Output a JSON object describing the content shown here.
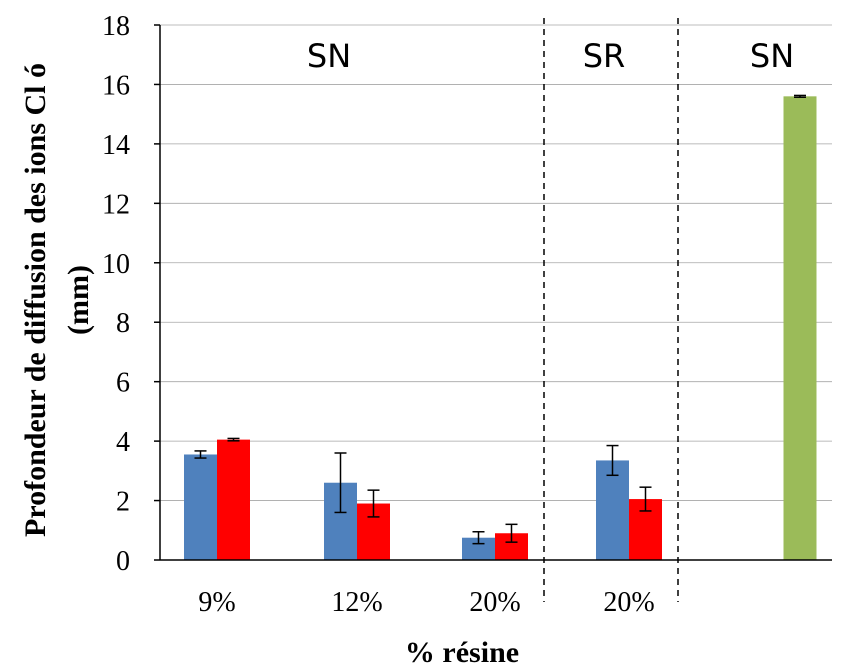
{
  "chart_data": {
    "type": "bar",
    "title": "",
    "xlabel": "% résine",
    "ylabel_line1": "Profondeur de diffusion des ions Cl ó",
    "ylabel_line2": "(mm)",
    "ylim": [
      0,
      18
    ],
    "yticks": [
      "0",
      "2",
      "4",
      "6",
      "8",
      "10",
      "12",
      "14",
      "16",
      "18"
    ],
    "grid": true,
    "legend": "none",
    "groups": [
      {
        "category": "9%",
        "region": "SN",
        "bars": [
          {
            "value": 3.55,
            "err": 0.12,
            "color": "#4f81bd"
          },
          {
            "value": 4.05,
            "err": 0.04,
            "color": "#ff0000"
          }
        ]
      },
      {
        "category": "12%",
        "region": "SN",
        "bars": [
          {
            "value": 2.6,
            "err": 1.0,
            "color": "#4f81bd"
          },
          {
            "value": 1.9,
            "err": 0.45,
            "color": "#ff0000"
          }
        ]
      },
      {
        "category": "20%",
        "region": "SN",
        "bars": [
          {
            "value": 0.75,
            "err": 0.2,
            "color": "#4f81bd"
          },
          {
            "value": 0.9,
            "err": 0.3,
            "color": "#ff0000"
          }
        ]
      },
      {
        "category": "20%",
        "region": "SR",
        "bars": [
          {
            "value": 3.35,
            "err": 0.5,
            "color": "#4f81bd"
          },
          {
            "value": 2.05,
            "err": 0.4,
            "color": "#ff0000"
          }
        ]
      },
      {
        "category": "",
        "region": "SN",
        "bars": [
          {
            "value": 15.6,
            "err": 0.03,
            "color": "#9bbb59"
          }
        ]
      }
    ],
    "regions": [
      "SN",
      "SR",
      "SN"
    ]
  }
}
